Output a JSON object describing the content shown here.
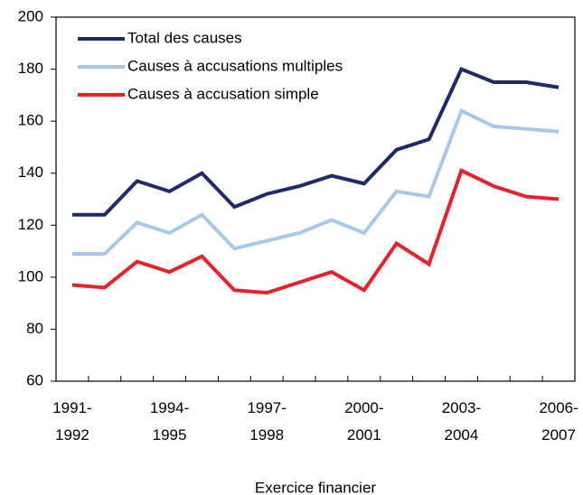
{
  "chart_data": {
    "type": "line",
    "x_label": "Exercice financier",
    "categories": [
      "1991-1992",
      null,
      null,
      "1994-1995",
      null,
      null,
      "1997-1998",
      null,
      null,
      "2000-2001",
      null,
      null,
      "2003-2004",
      null,
      null,
      "2006-2007"
    ],
    "series": [
      {
        "name": "Total des causes",
        "color": "#1f2a6b",
        "values": [
          124,
          124,
          137,
          133,
          140,
          127,
          132,
          135,
          139,
          136,
          149,
          153,
          180,
          175,
          175,
          173
        ]
      },
      {
        "name": "Causes à accusations multiples",
        "color": "#a6c8ea",
        "values": [
          109,
          109,
          121,
          117,
          124,
          111,
          114,
          117,
          122,
          117,
          133,
          131,
          164,
          158,
          157,
          156
        ]
      },
      {
        "name": "Causes à accusation simple",
        "color": "#e8202a",
        "values": [
          97,
          96,
          106,
          102,
          108,
          95,
          94,
          98,
          102,
          95,
          113,
          105,
          141,
          135,
          131,
          130
        ]
      }
    ],
    "ylim": [
      60,
      200
    ],
    "yticks": [
      60,
      80,
      100,
      120,
      140,
      160,
      180,
      200
    ],
    "grid": false,
    "legend": "upper left"
  }
}
